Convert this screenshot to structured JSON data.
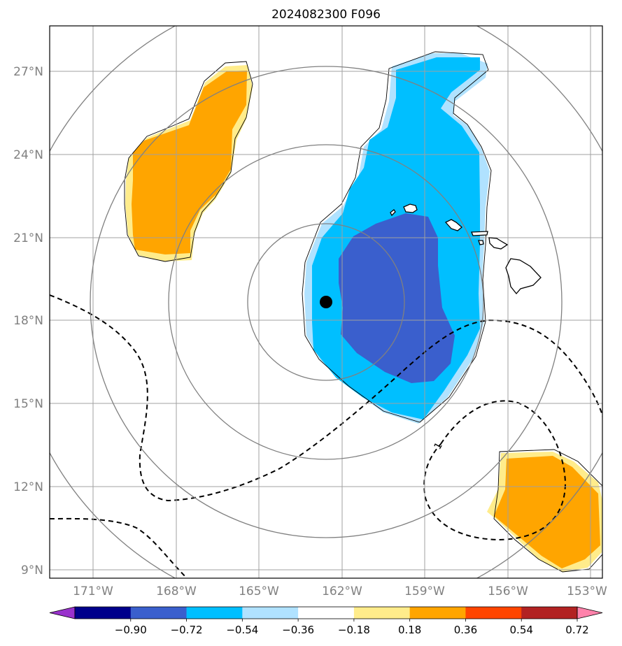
{
  "title": "2024082300 F096",
  "map": {
    "projection": "polar-centered",
    "storm_center": {
      "lon": "162.5°W",
      "lat": "18.7°N"
    },
    "range_rings": 4,
    "lat_ticks": [
      "27°N",
      "24°N",
      "21°N",
      "18°N",
      "15°N",
      "12°N",
      "9°N"
    ],
    "lon_ticks": [
      "171°W",
      "168°W",
      "165°W",
      "162°W",
      "159°W",
      "156°W",
      "153°W"
    ],
    "contour_label": "1",
    "gridline_color": "#a0a0a0",
    "ring_color": "#808080",
    "contour_color": "#000000",
    "regions": [
      {
        "name": "positive-anomaly-northwest",
        "level": "0.36 to 0.54",
        "color": "#ffa500"
      },
      {
        "name": "negative-anomaly-central",
        "level": "-0.36 to -0.54",
        "color": "#00bfff"
      },
      {
        "name": "negative-anomaly-core",
        "level": "-0.54 to -0.72",
        "color": "#3a5fcd"
      },
      {
        "name": "positive-anomaly-southeast",
        "level": "0.36 to 0.54",
        "color": "#ffa500"
      }
    ],
    "landmass": "Hawaiian Islands"
  },
  "colorbar": {
    "colors": [
      "#9932cc",
      "#00008b",
      "#3a5fcd",
      "#00bfff",
      "#b0e2ff",
      "#ffffff",
      "#ffec8b",
      "#ffa500",
      "#ff4500",
      "#b22222",
      "#ff82ab"
    ],
    "labels": [
      "−0.90",
      "−0.72",
      "−0.54",
      "−0.36",
      "−0.18",
      "0.18",
      "0.36",
      "0.54",
      "0.72",
      "0.90"
    ]
  }
}
